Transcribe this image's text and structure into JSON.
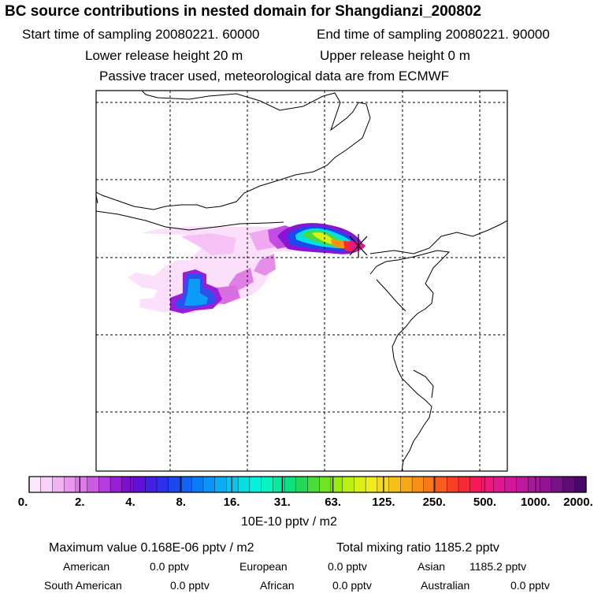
{
  "title": "BC  source contributions in nested domain for Shangdianzi_200802",
  "sampling": {
    "start": "Start time of sampling 20080221. 60000",
    "end": "End time of sampling 20080221. 90000"
  },
  "release": {
    "lower": "Lower release height   20 m",
    "upper": "Upper release height    0 m"
  },
  "note": "Passive tracer used, meteorological data are from ECMWF",
  "colorbar": {
    "ticks": [
      "0.",
      "2.",
      "4.",
      "8.",
      "16.",
      "31.",
      "63.",
      "125.",
      "250.",
      "500.",
      "1000.",
      "2000."
    ],
    "unit": "10E-10 pptv / m2",
    "colors": [
      "#fce8fc",
      "#f8d0f8",
      "#f0b4f0",
      "#e898ec",
      "#dc7ce8",
      "#cc5ce4",
      "#b43ce0",
      "#9a1ed8",
      "#7e0ed0",
      "#6010d8",
      "#4420e0",
      "#2c30e8",
      "#1c48f0",
      "#1462f4",
      "#0c7cf6",
      "#0a94f6",
      "#0aacf2",
      "#08c6ee",
      "#06dee6",
      "#04f2dc",
      "#06f2c0",
      "#08e8a0",
      "#10e07c",
      "#24d85a",
      "#48dc38",
      "#70e420",
      "#98ec10",
      "#bcf010",
      "#dcf018",
      "#f0ec20",
      "#f8d820",
      "#f8c018",
      "#f8a818",
      "#f89018",
      "#f87818",
      "#f85c20",
      "#f84028",
      "#f82838",
      "#f81858",
      "#f01878",
      "#e01890",
      "#d01898",
      "#c0189c",
      "#a8189c",
      "#901494",
      "#781088",
      "#600c78",
      "#48086a"
    ]
  },
  "marker": "Shangdianzi",
  "stats": {
    "max_value": "Maximum value  0.168E-06 pptv / m2",
    "total_mixing": "Total mixing ratio     1185.2 pptv"
  },
  "regions": [
    {
      "name": "American",
      "value": "0.0 pptv"
    },
    {
      "name": "European",
      "value": "0.0 pptv"
    },
    {
      "name": "Asian",
      "value": "1185.2 pptv"
    },
    {
      "name": "South American",
      "value": "0.0 pptv"
    },
    {
      "name": "African",
      "value": "0.0 pptv"
    },
    {
      "name": "Australian",
      "value": "0.0 pptv"
    }
  ]
}
